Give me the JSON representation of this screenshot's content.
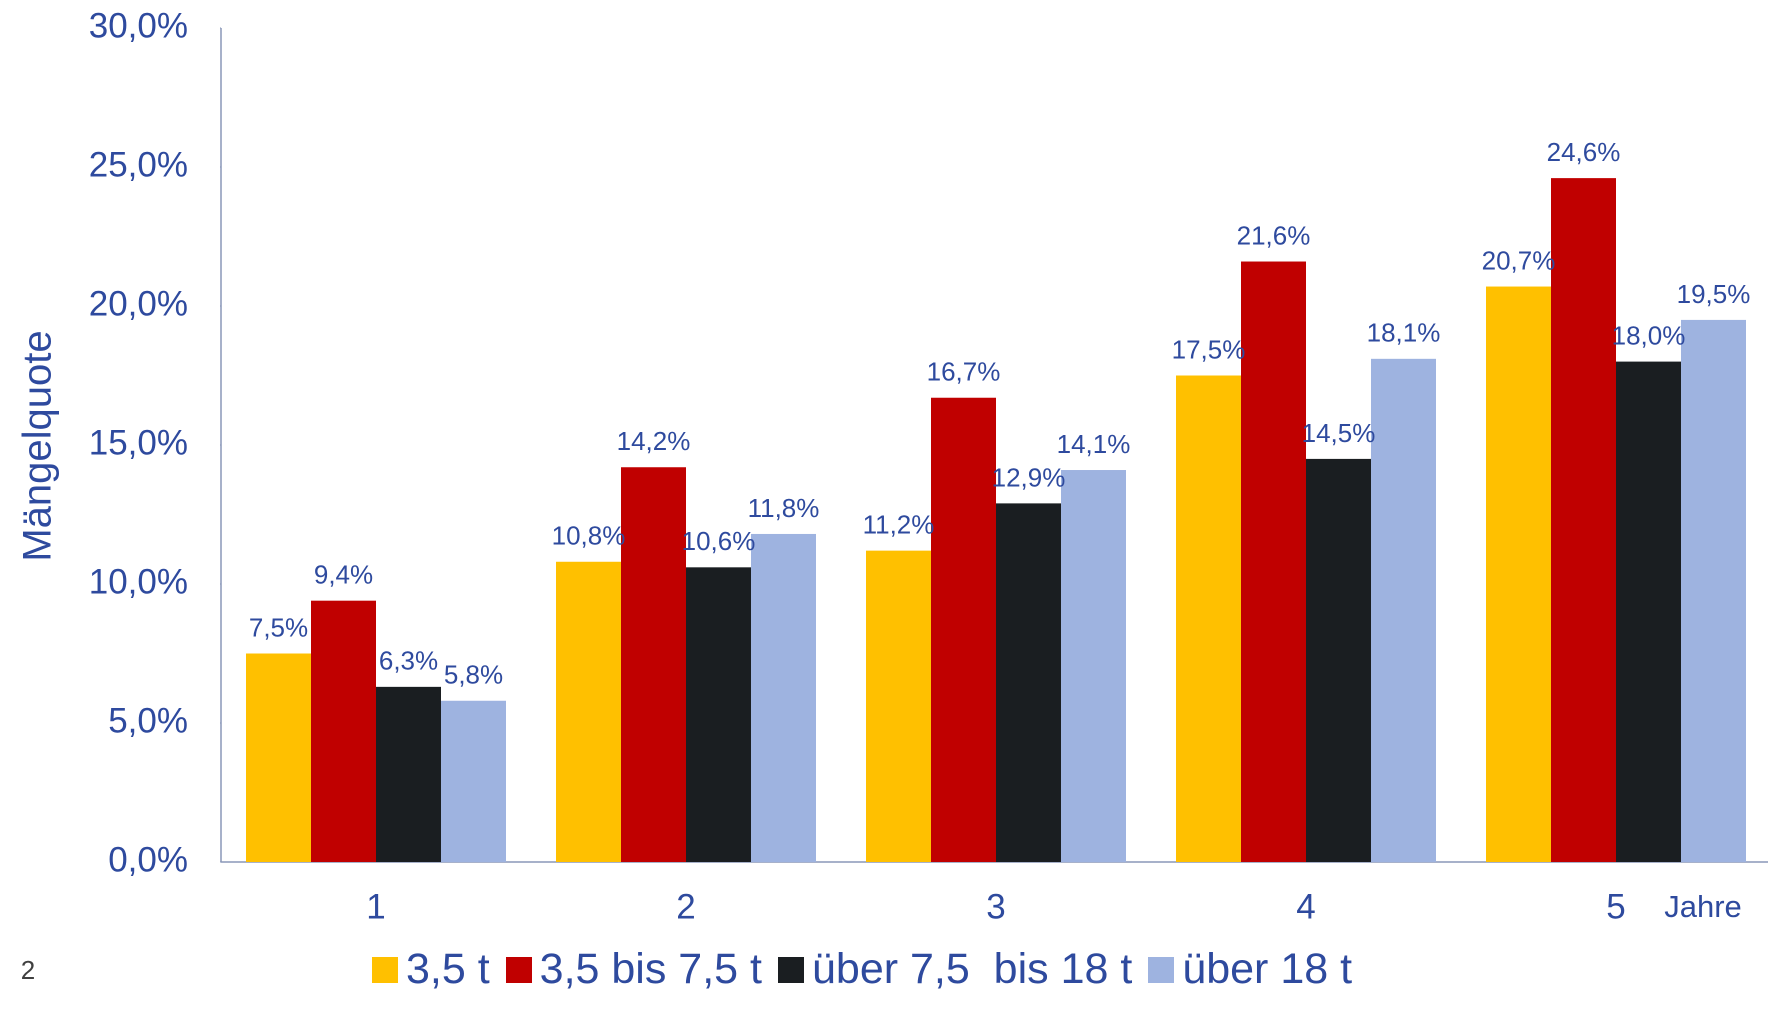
{
  "chart_data": {
    "type": "bar",
    "y_axis_label": "Mängelquote",
    "x_axis_label": "Jahre",
    "page_number": "2",
    "categories": [
      "1",
      "2",
      "3",
      "4",
      "5"
    ],
    "series": [
      {
        "name": "3,5 t",
        "color": "#FFC000",
        "values": [
          7.5,
          10.8,
          11.2,
          17.5,
          20.7
        ],
        "value_labels": [
          "7,5%",
          "10,8%",
          "11,2%",
          "17,5%",
          "20,7%"
        ]
      },
      {
        "name": "3,5 bis 7,5 t",
        "color": "#C00000",
        "values": [
          9.4,
          14.2,
          16.7,
          21.6,
          24.6
        ],
        "value_labels": [
          "9,4%",
          "14,2%",
          "16,7%",
          "21,6%",
          "24,6%"
        ]
      },
      {
        "name": "über 7,5  bis 18 t",
        "color": "#1A1E21",
        "values": [
          6.3,
          10.6,
          12.9,
          14.5,
          18.0
        ],
        "value_labels": [
          "6,3%",
          "10,6%",
          "12,9%",
          "14,5%",
          "18,0%"
        ]
      },
      {
        "name": "über 18 t",
        "color": "#9EB3E0",
        "values": [
          5.8,
          11.8,
          14.1,
          18.1,
          19.5
        ],
        "value_labels": [
          "5,8%",
          "11,8%",
          "14,1%",
          "18,1%",
          "19,5%"
        ]
      }
    ],
    "ylim": [
      0,
      30
    ],
    "yticks": [
      {
        "value": 0,
        "label": "0,0%"
      },
      {
        "value": 5,
        "label": "5,0%"
      },
      {
        "value": 10,
        "label": "10,0%"
      },
      {
        "value": 15,
        "label": "15,0%"
      },
      {
        "value": 20,
        "label": "20,0%"
      },
      {
        "value": 25,
        "label": "25,0%"
      },
      {
        "value": 30,
        "label": "30,0%"
      }
    ],
    "grid": false,
    "legend": "bottom"
  }
}
